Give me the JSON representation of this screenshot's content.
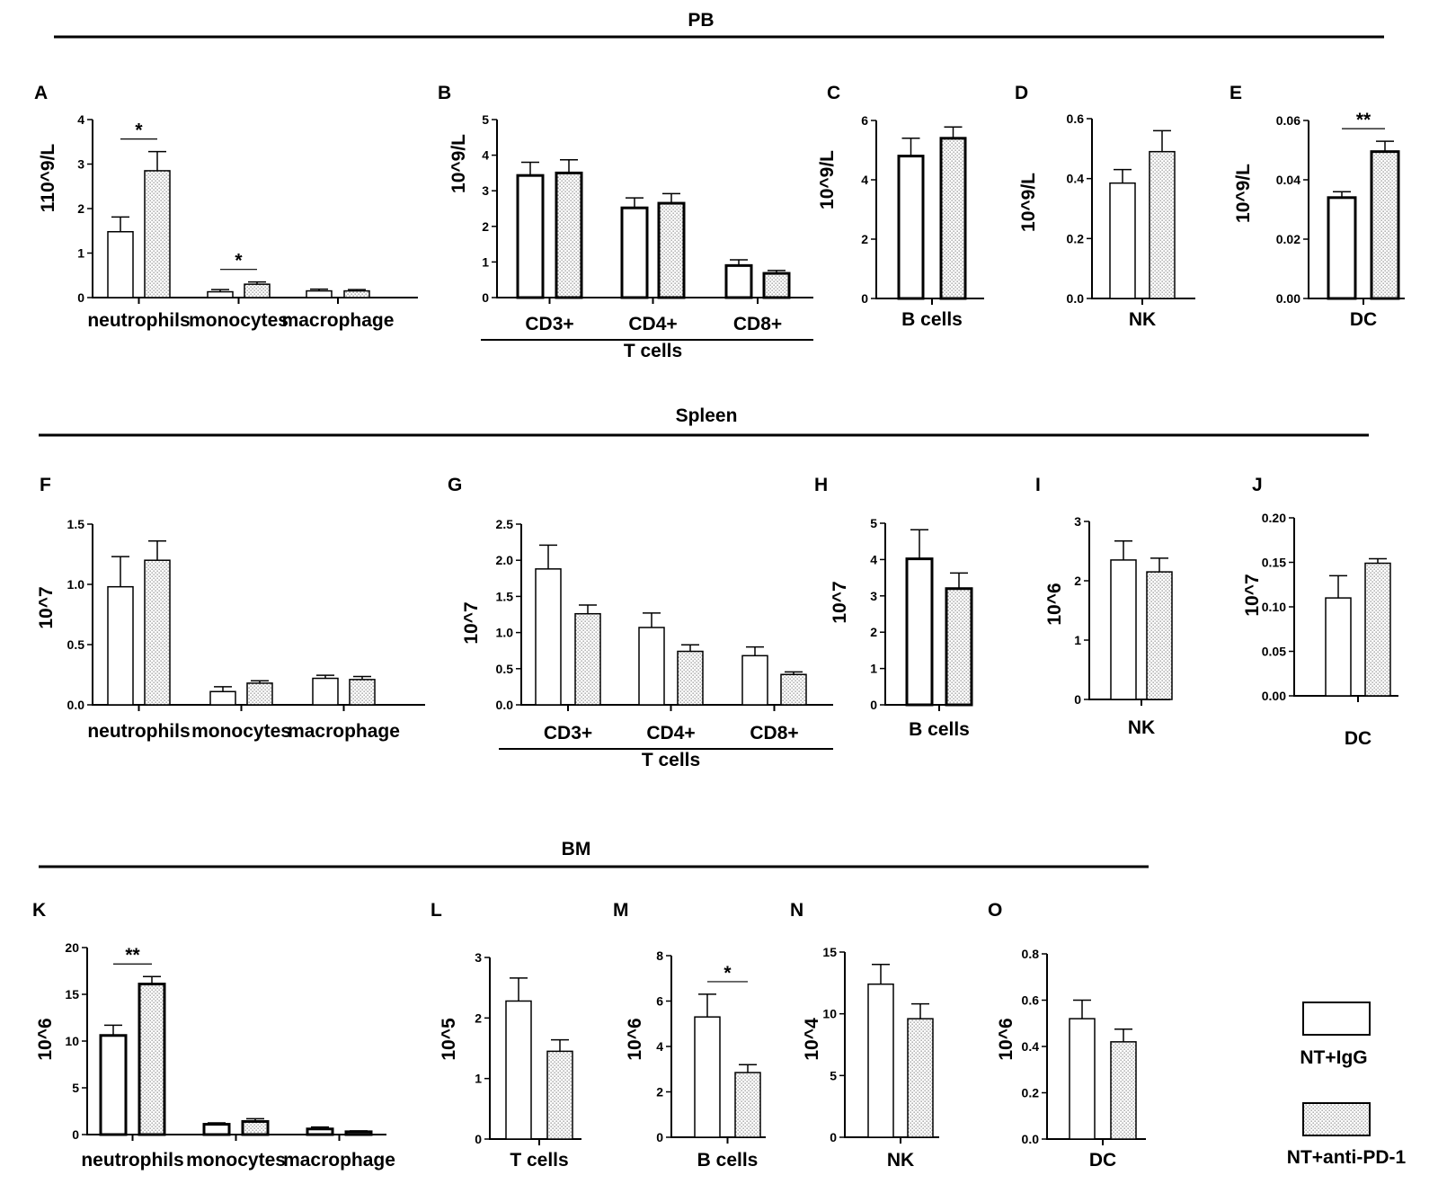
{
  "sections": [
    {
      "title": "PB"
    },
    {
      "title": "Spleen"
    },
    {
      "title": "BM"
    }
  ],
  "legend": [
    {
      "label": "NT+IgG",
      "pattern": "open"
    },
    {
      "label": "NT+anti-PD-1",
      "pattern": "dotted"
    }
  ],
  "colors": {
    "bar_edge": "#000000",
    "open_fill": "#ffffff",
    "dot_color": "#8a8a8a"
  },
  "chart_data": [
    {
      "letter": "A",
      "type": "bar",
      "ylabel": "110^9/L",
      "ylim": [
        0,
        4
      ],
      "ticks": [
        "0",
        "1",
        "2",
        "3",
        "4"
      ],
      "categories": [
        "neutrophils",
        "monocytes",
        "macrophage"
      ],
      "series": [
        {
          "name": "NT+IgG",
          "values": [
            1.48,
            0.13,
            0.15
          ],
          "errors": [
            0.33,
            0.05,
            0.04
          ]
        },
        {
          "name": "NT+anti-PD-1",
          "values": [
            2.85,
            0.3,
            0.15
          ],
          "errors": [
            0.43,
            0.05,
            0.03
          ]
        }
      ],
      "significance": [
        {
          "category": 0,
          "label": "*"
        },
        {
          "category": 1,
          "label": "*"
        }
      ]
    },
    {
      "letter": "B",
      "type": "bar",
      "ylabel": "10^9/L",
      "ylim": [
        0,
        5
      ],
      "ticks": [
        "0",
        "1",
        "2",
        "3",
        "4",
        "5"
      ],
      "categories": [
        "CD3+",
        "CD4+",
        "CD8+"
      ],
      "group_label": "T cells",
      "series": [
        {
          "name": "NT+IgG",
          "values": [
            3.43,
            2.52,
            0.9
          ],
          "errors": [
            0.37,
            0.28,
            0.16
          ]
        },
        {
          "name": "NT+anti-PD-1",
          "values": [
            3.5,
            2.65,
            0.68
          ],
          "errors": [
            0.37,
            0.27,
            0.08
          ]
        }
      ],
      "significance": []
    },
    {
      "letter": "C",
      "type": "bar",
      "ylabel": "10^9/L",
      "ylim": [
        0,
        6
      ],
      "ticks": [
        "0",
        "2",
        "4",
        "6"
      ],
      "categories": [
        "B cells"
      ],
      "series": [
        {
          "name": "NT+IgG",
          "values": [
            4.8
          ],
          "errors": [
            0.6
          ]
        },
        {
          "name": "NT+anti-PD-1",
          "values": [
            5.4
          ],
          "errors": [
            0.38
          ]
        }
      ],
      "significance": []
    },
    {
      "letter": "D",
      "type": "bar",
      "ylabel": "10^9/L",
      "ylim": [
        0,
        0.6
      ],
      "ticks": [
        "0.0",
        "0.2",
        "0.4",
        "0.6"
      ],
      "categories": [
        "NK"
      ],
      "series": [
        {
          "name": "NT+IgG",
          "values": [
            0.385
          ],
          "errors": [
            0.045
          ]
        },
        {
          "name": "NT+anti-PD-1",
          "values": [
            0.49
          ],
          "errors": [
            0.07
          ]
        }
      ],
      "significance": []
    },
    {
      "letter": "E",
      "type": "bar",
      "ylabel": "10^9/L",
      "ylim": [
        0,
        0.06
      ],
      "ticks": [
        "0.00",
        "0.02",
        "0.04",
        "0.06"
      ],
      "categories": [
        "DC"
      ],
      "series": [
        {
          "name": "NT+IgG",
          "values": [
            0.034
          ],
          "errors": [
            0.002
          ]
        },
        {
          "name": "NT+anti-PD-1",
          "values": [
            0.0495
          ],
          "errors": [
            0.0035
          ]
        }
      ],
      "significance": [
        {
          "category": 0,
          "label": "**"
        }
      ]
    },
    {
      "letter": "F",
      "type": "bar",
      "ylabel": "10^7",
      "ylim": [
        0,
        1.5
      ],
      "ticks": [
        "0.0",
        "0.5",
        "1.0",
        "1.5"
      ],
      "categories": [
        "neutrophils",
        "monocytes",
        "macrophage"
      ],
      "series": [
        {
          "name": "NT+IgG",
          "values": [
            0.98,
            0.11,
            0.22
          ],
          "errors": [
            0.25,
            0.04,
            0.025
          ]
        },
        {
          "name": "NT+anti-PD-1",
          "values": [
            1.2,
            0.18,
            0.21
          ],
          "errors": [
            0.16,
            0.02,
            0.025
          ]
        }
      ],
      "significance": []
    },
    {
      "letter": "G",
      "type": "bar",
      "ylabel": "10^7",
      "ylim": [
        0,
        2.5
      ],
      "ticks": [
        "0.0",
        "0.5",
        "1.0",
        "1.5",
        "2.0",
        "2.5"
      ],
      "categories": [
        "CD3+",
        "CD4+",
        "CD8+"
      ],
      "group_label": "T cells",
      "series": [
        {
          "name": "NT+IgG",
          "values": [
            1.88,
            1.07,
            0.68
          ],
          "errors": [
            0.33,
            0.2,
            0.12
          ]
        },
        {
          "name": "NT+anti-PD-1",
          "values": [
            1.26,
            0.74,
            0.42
          ],
          "errors": [
            0.12,
            0.09,
            0.035
          ]
        }
      ],
      "significance": []
    },
    {
      "letter": "H",
      "type": "bar",
      "ylabel": "10^7",
      "ylim": [
        0,
        5
      ],
      "ticks": [
        "0",
        "1",
        "2",
        "3",
        "4",
        "5"
      ],
      "categories": [
        "B cells"
      ],
      "series": [
        {
          "name": "NT+IgG",
          "values": [
            4.02
          ],
          "errors": [
            0.8
          ]
        },
        {
          "name": "NT+anti-PD-1",
          "values": [
            3.2
          ],
          "errors": [
            0.43
          ]
        }
      ],
      "significance": []
    },
    {
      "letter": "I",
      "type": "bar",
      "ylabel": "10^6",
      "ylim": [
        0,
        3
      ],
      "ticks": [
        "0",
        "1",
        "2",
        "3"
      ],
      "categories": [
        "NK"
      ],
      "series": [
        {
          "name": "NT+IgG",
          "values": [
            2.35
          ],
          "errors": [
            0.32
          ]
        },
        {
          "name": "NT+anti-PD-1",
          "values": [
            2.15
          ],
          "errors": [
            0.23
          ]
        }
      ],
      "significance": []
    },
    {
      "letter": "J",
      "type": "bar",
      "ylabel": "10^7",
      "ylim": [
        0,
        0.2
      ],
      "ticks": [
        "0.00",
        "0.05",
        "0.10",
        "0.15",
        "0.20"
      ],
      "categories": [
        "DC"
      ],
      "series": [
        {
          "name": "NT+IgG",
          "values": [
            0.11
          ],
          "errors": [
            0.025
          ]
        },
        {
          "name": "NT+anti-PD-1",
          "values": [
            0.149
          ],
          "errors": [
            0.005
          ]
        }
      ],
      "significance": []
    },
    {
      "letter": "K",
      "type": "bar",
      "ylabel": "10^6",
      "ylim": [
        0,
        20
      ],
      "ticks": [
        "0",
        "5",
        "10",
        "15",
        "20"
      ],
      "categories": [
        "neutrophils",
        "monocytes",
        "macrophage"
      ],
      "series": [
        {
          "name": "NT+IgG",
          "values": [
            10.6,
            1.1,
            0.6
          ],
          "errors": [
            1.1,
            0.15,
            0.2
          ]
        },
        {
          "name": "NT+anti-PD-1",
          "values": [
            16.1,
            1.4,
            0.3
          ],
          "errors": [
            0.8,
            0.3,
            0.1
          ]
        }
      ],
      "significance": [
        {
          "category": 0,
          "label": "**"
        }
      ]
    },
    {
      "letter": "L",
      "type": "bar",
      "ylabel": "10^5",
      "ylim": [
        0,
        3
      ],
      "ticks": [
        "0",
        "1",
        "2",
        "3"
      ],
      "categories": [
        "T cells"
      ],
      "series": [
        {
          "name": "NT+IgG",
          "values": [
            2.28
          ],
          "errors": [
            0.38
          ]
        },
        {
          "name": "NT+anti-PD-1",
          "values": [
            1.45
          ],
          "errors": [
            0.19
          ]
        }
      ],
      "significance": []
    },
    {
      "letter": "M",
      "type": "bar",
      "ylabel": "10^6",
      "ylim": [
        0,
        8
      ],
      "ticks": [
        "0",
        "2",
        "4",
        "6",
        "8"
      ],
      "categories": [
        "B cells"
      ],
      "series": [
        {
          "name": "NT+IgG",
          "values": [
            5.3
          ],
          "errors": [
            1.0
          ]
        },
        {
          "name": "NT+anti-PD-1",
          "values": [
            2.85
          ],
          "errors": [
            0.35
          ]
        }
      ],
      "significance": [
        {
          "category": 0,
          "label": "*"
        }
      ]
    },
    {
      "letter": "N",
      "type": "bar",
      "ylabel": "10^4",
      "ylim": [
        0,
        15
      ],
      "ticks": [
        "0",
        "5",
        "10",
        "15"
      ],
      "categories": [
        "NK"
      ],
      "series": [
        {
          "name": "NT+IgG",
          "values": [
            12.4
          ],
          "errors": [
            1.6
          ]
        },
        {
          "name": "NT+anti-PD-1",
          "values": [
            9.6
          ],
          "errors": [
            1.2
          ]
        }
      ],
      "significance": []
    },
    {
      "letter": "O",
      "type": "bar",
      "ylabel": "10^6",
      "ylim": [
        0,
        0.8
      ],
      "ticks": [
        "0.0",
        "0.2",
        "0.4",
        "0.6",
        "0.8"
      ],
      "categories": [
        "DC"
      ],
      "series": [
        {
          "name": "NT+IgG",
          "values": [
            0.52
          ],
          "errors": [
            0.08
          ]
        },
        {
          "name": "NT+anti-PD-1",
          "values": [
            0.42
          ],
          "errors": [
            0.055
          ]
        }
      ],
      "significance": []
    }
  ]
}
